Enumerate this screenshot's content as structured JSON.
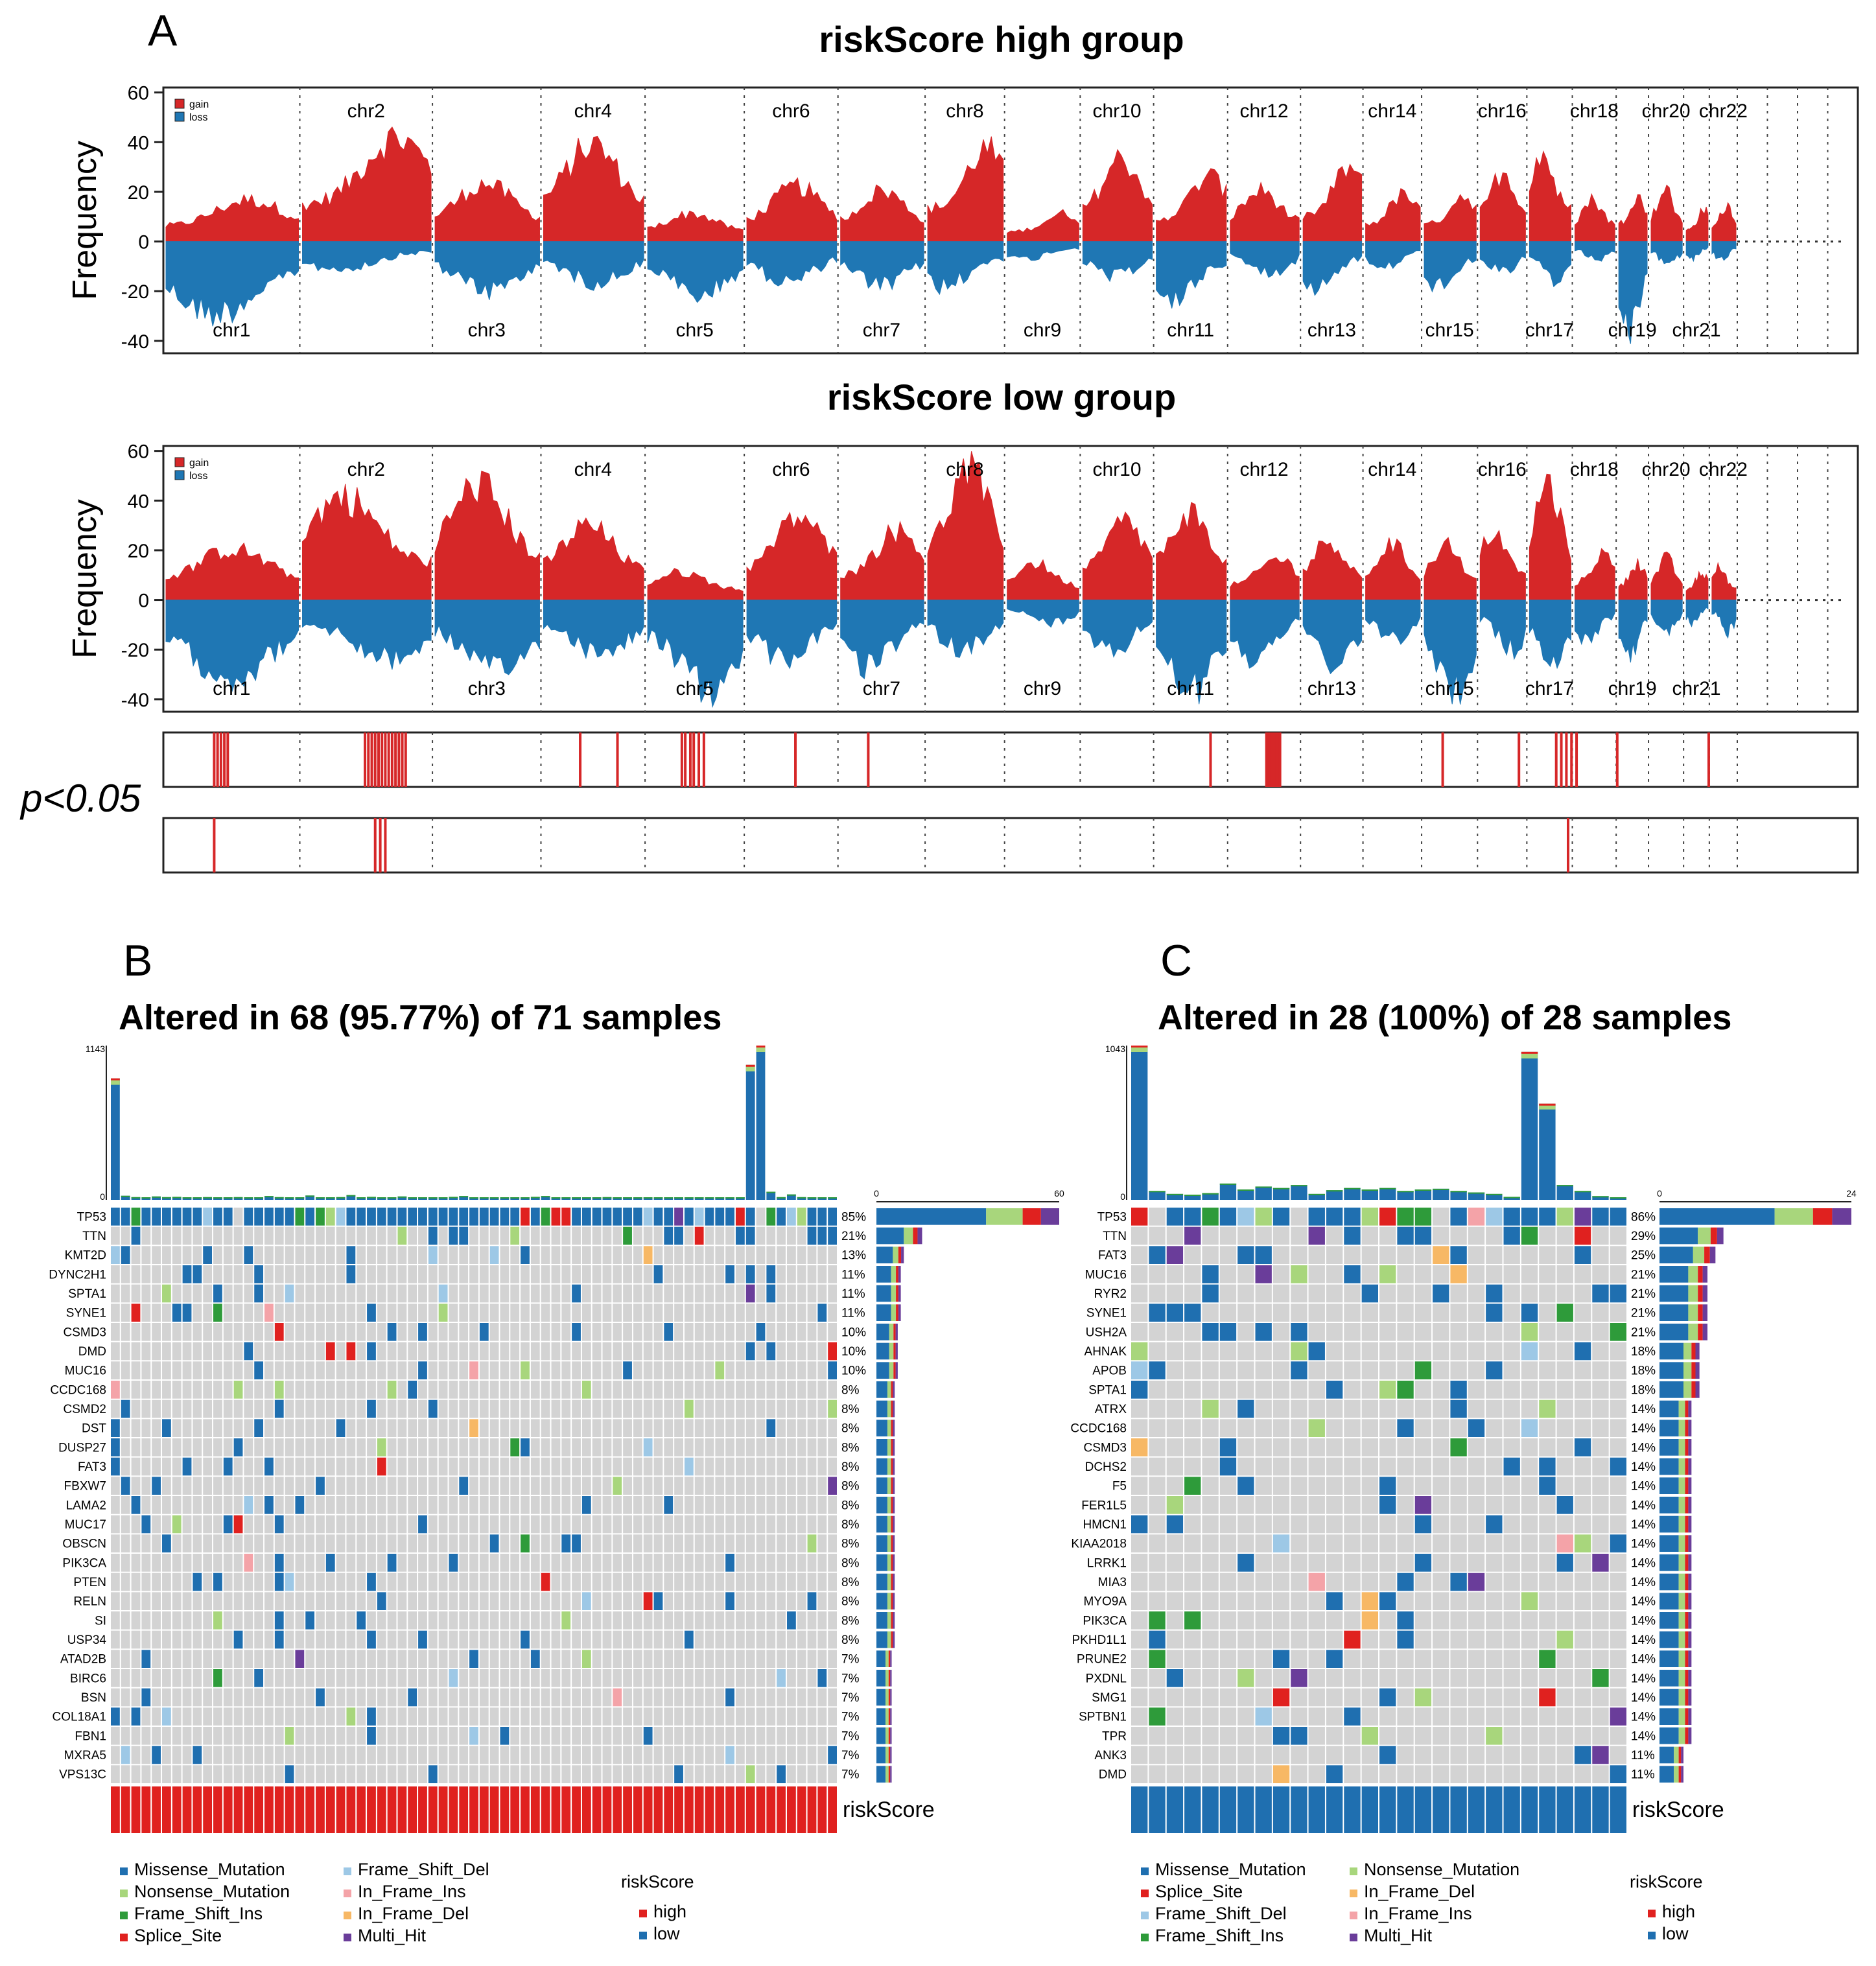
{
  "panel_labels": {
    "a": "A",
    "b": "B",
    "c": "C"
  },
  "colors": {
    "gain": "#d62728",
    "loss": "#1f77b4",
    "grid_bg": "#d3d3d3",
    "Missense_Mutation": "#1f6fb0",
    "Nonsense_Mutation": "#a8d67c",
    "Frame_Shift_Ins": "#2e9b3a",
    "Splice_Site": "#e0211f",
    "Frame_Shift_Del": "#9dc8e6",
    "In_Frame_Ins": "#f4a3a8",
    "In_Frame_Del": "#f7b865",
    "Multi_Hit": "#6a3d9a",
    "riskScore_high": "#e0211f",
    "riskScore_low": "#1f6fb0"
  },
  "chart_data": [
    {
      "type": "area",
      "title": "riskScore high group",
      "ylabel": "Frequency",
      "ylim": [
        -45,
        62
      ],
      "yticks": [
        60,
        40,
        20,
        0,
        -20,
        -40
      ],
      "legend": [
        "gain",
        "loss"
      ],
      "legend_position": "top-left",
      "chromosomes_top": [
        "chr2",
        "chr4",
        "chr6",
        "chr8",
        "chr10",
        "chr12",
        "chr14",
        "chr16",
        "chr18",
        "chr20",
        "chr22"
      ],
      "chromosomes_bottom": [
        "chr1",
        "chr3",
        "chr5",
        "chr7",
        "chr9",
        "chr11",
        "chr13",
        "chr15",
        "chr17",
        "chr19",
        "chr21"
      ],
      "chrom_sizes": [
        249,
        242,
        198,
        190,
        181,
        171,
        159,
        145,
        138,
        134,
        135,
        133,
        114,
        107,
        102,
        90,
        83,
        80,
        59,
        64,
        47,
        51
      ],
      "gain_peaks": [
        18,
        45,
        25,
        42,
        12,
        24,
        22,
        40,
        12,
        36,
        28,
        22,
        32,
        20,
        20,
        30,
        38,
        18,
        20,
        22,
        14,
        16
      ],
      "loss_peaks": [
        -32,
        -12,
        -22,
        -18,
        -24,
        -18,
        -20,
        -20,
        -8,
        -16,
        -26,
        -14,
        -20,
        -12,
        -20,
        -14,
        -18,
        -8,
        -42,
        -10,
        -8,
        -8
      ]
    },
    {
      "type": "area",
      "title": "riskScore low group",
      "ylabel": "Frequency",
      "ylim": [
        -45,
        62
      ],
      "yticks": [
        60,
        40,
        20,
        0,
        -20,
        -40
      ],
      "legend": [
        "gain",
        "loss"
      ],
      "legend_position": "top-left",
      "chromosomes_top": [
        "chr2",
        "chr4",
        "chr6",
        "chr8",
        "chr10",
        "chr12",
        "chr14",
        "chr16",
        "chr18",
        "chr20",
        "chr22"
      ],
      "chromosomes_bottom": [
        "chr1",
        "chr3",
        "chr5",
        "chr7",
        "chr9",
        "chr11",
        "chr13",
        "chr15",
        "chr17",
        "chr19",
        "chr21"
      ],
      "chrom_sizes": [
        249,
        242,
        198,
        190,
        181,
        171,
        159,
        145,
        138,
        134,
        135,
        133,
        114,
        107,
        102,
        90,
        83,
        80,
        59,
        64,
        47,
        51
      ],
      "gain_peaks": [
        22,
        45,
        50,
        32,
        12,
        36,
        30,
        56,
        16,
        34,
        38,
        18,
        26,
        24,
        24,
        30,
        52,
        20,
        16,
        18,
        12,
        14
      ],
      "loss_peaks": [
        -34,
        -26,
        -32,
        -24,
        -40,
        -26,
        -30,
        -22,
        -10,
        -24,
        -40,
        -26,
        -28,
        -18,
        -42,
        -22,
        -28,
        -18,
        -26,
        -14,
        -10,
        -14
      ]
    },
    {
      "type": "heatmap",
      "title": "p<0.05",
      "tracks": [
        {
          "name": "gain",
          "significant_positions": [
            0.03,
            0.032,
            0.034,
            0.036,
            0.038,
            0.119,
            0.121,
            0.123,
            0.125,
            0.127,
            0.129,
            0.131,
            0.133,
            0.135,
            0.137,
            0.139,
            0.141,
            0.143,
            0.246,
            0.268,
            0.306,
            0.308,
            0.311,
            0.313,
            0.316,
            0.319,
            0.373,
            0.416,
            0.618,
            0.651,
            0.652,
            0.653,
            0.654,
            0.655,
            0.656,
            0.657,
            0.658,
            0.659,
            0.755,
            0.8,
            0.822,
            0.825,
            0.828,
            0.831,
            0.834,
            0.858,
            0.912
          ]
        },
        {
          "name": "loss",
          "significant_positions": [
            0.03,
            0.125,
            0.128,
            0.131,
            0.829
          ]
        }
      ]
    },
    {
      "type": "table",
      "title": "Altered in 68 (95.77%) of 71 samples",
      "top_axis_max": "1143",
      "top_axis_min": "0",
      "side_axis": [
        "0",
        "60"
      ],
      "n_samples": 71,
      "genes": [
        "TP53",
        "TTN",
        "KMT2D",
        "DYNC2H1",
        "SPTA1",
        "SYNE1",
        "CSMD3",
        "DMD",
        "MUC16",
        "CCDC168",
        "CSMD2",
        "DST",
        "DUSP27",
        "FAT3",
        "FBXW7",
        "LAMA2",
        "MUC17",
        "OBSCN",
        "PIK3CA",
        "PTEN",
        "RELN",
        "SI",
        "USP34",
        "ATAD2B",
        "BIRC6",
        "BSN",
        "COL18A1",
        "FBN1",
        "MXRA5",
        "VPS13C"
      ],
      "percents": [
        "85%",
        "21%",
        "13%",
        "11%",
        "11%",
        "11%",
        "10%",
        "10%",
        "10%",
        "8%",
        "8%",
        "8%",
        "8%",
        "8%",
        "8%",
        "8%",
        "8%",
        "8%",
        "8%",
        "8%",
        "8%",
        "8%",
        "8%",
        "7%",
        "7%",
        "7%",
        "7%",
        "7%",
        "7%",
        "7%"
      ],
      "counts": [
        60,
        15,
        9,
        8,
        8,
        8,
        7,
        7,
        7,
        6,
        6,
        6,
        6,
        6,
        6,
        6,
        6,
        6,
        6,
        6,
        6,
        6,
        6,
        5,
        5,
        5,
        5,
        5,
        5,
        5
      ],
      "tmb": [
        900,
        30,
        20,
        18,
        25,
        20,
        22,
        15,
        18,
        20,
        18,
        15,
        20,
        12,
        15,
        28,
        20,
        15,
        18,
        32,
        12,
        18,
        20,
        35,
        18,
        22,
        14,
        12,
        25,
        18,
        15,
        14,
        14,
        22,
        28,
        15,
        18,
        15,
        18,
        14,
        16,
        22,
        28,
        16,
        18,
        12,
        16,
        18,
        20,
        14,
        18,
        15,
        12,
        16,
        18,
        14,
        18,
        14,
        12,
        16,
        16,
        12,
        1000,
        1143,
        60,
        20,
        40,
        20,
        12,
        12,
        8
      ],
      "risk_group": "high",
      "track_label": "riskScore"
    },
    {
      "type": "table",
      "title": "Altered in 28 (100%) of 28 samples",
      "top_axis_max": "1043",
      "top_axis_min": "0",
      "side_axis": [
        "0",
        "24"
      ],
      "n_samples": 28,
      "genes": [
        "TP53",
        "TTN",
        "FAT3",
        "MUC16",
        "RYR2",
        "SYNE1",
        "USH2A",
        "AHNAK",
        "APOB",
        "SPTA1",
        "ATRX",
        "CCDC168",
        "CSMD3",
        "DCHS2",
        "F5",
        "FER1L5",
        "HMCN1",
        "KIAA2018",
        "LRRK1",
        "MIA3",
        "MYO9A",
        "PIK3CA",
        "PKHD1L1",
        "PRUNE2",
        "PXDNL",
        "SMG1",
        "SPTBN1",
        "TPR",
        "ANK3",
        "DMD"
      ],
      "percents": [
        "86%",
        "29%",
        "25%",
        "21%",
        "21%",
        "21%",
        "21%",
        "18%",
        "18%",
        "18%",
        "14%",
        "14%",
        "14%",
        "14%",
        "14%",
        "14%",
        "14%",
        "14%",
        "14%",
        "14%",
        "14%",
        "14%",
        "14%",
        "14%",
        "14%",
        "14%",
        "14%",
        "14%",
        "11%",
        "11%"
      ],
      "counts": [
        24,
        8,
        7,
        6,
        6,
        6,
        6,
        5,
        5,
        5,
        4,
        4,
        4,
        4,
        4,
        4,
        4,
        4,
        4,
        4,
        4,
        4,
        4,
        4,
        4,
        4,
        4,
        4,
        3,
        3
      ],
      "tmb": [
        1043,
        60,
        40,
        35,
        45,
        110,
        70,
        90,
        80,
        100,
        40,
        65,
        80,
        70,
        80,
        60,
        70,
        75,
        60,
        50,
        40,
        20,
        1000,
        650,
        100,
        60,
        25,
        15
      ],
      "risk_group": "low",
      "track_label": "riskScore"
    }
  ],
  "legends": {
    "variant_types_b": [
      "Missense_Mutation",
      "Nonsense_Mutation",
      "Frame_Shift_Ins",
      "Splice_Site",
      "Frame_Shift_Del",
      "In_Frame_Ins",
      "In_Frame_Del",
      "Multi_Hit"
    ],
    "variant_types_c": [
      "Missense_Mutation",
      "Splice_Site",
      "Frame_Shift_Del",
      "Frame_Shift_Ins",
      "Nonsense_Mutation",
      "In_Frame_Del",
      "In_Frame_Ins",
      "Multi_Hit"
    ],
    "risk_title": "riskScore",
    "risk_levels": [
      "high",
      "low"
    ]
  }
}
